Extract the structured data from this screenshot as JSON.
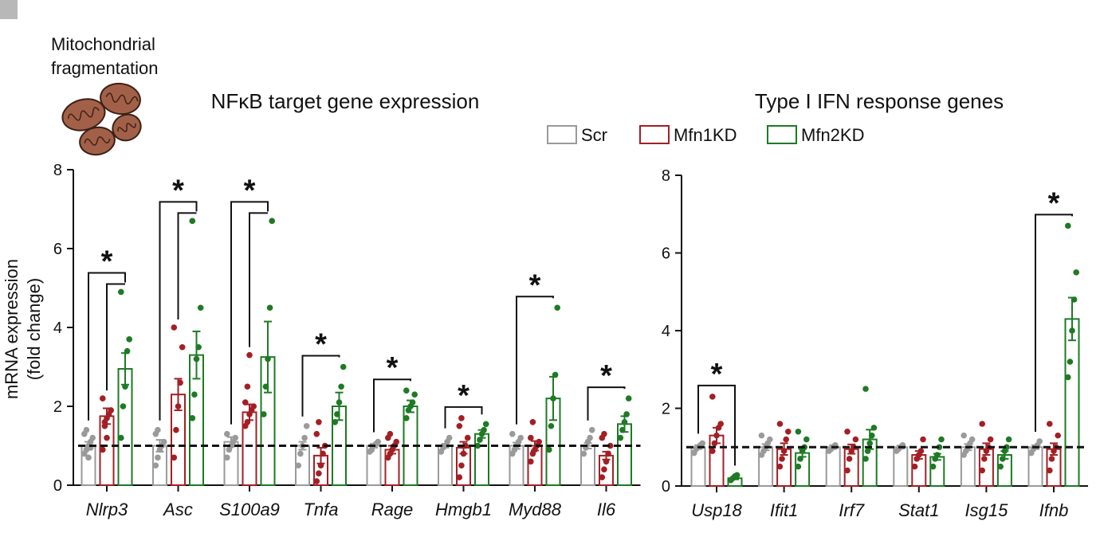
{
  "figure": {
    "mito_label_line1": "Mitochondrial",
    "mito_label_line2": "fragmentation",
    "ylabel_line1": "mRNA expression",
    "ylabel_line2": "(fold change)",
    "colors": {
      "Scr": "#9a9a9a",
      "Mfn1KD": "#a31f24",
      "Mfn2KD": "#1e7a24"
    },
    "legend": [
      {
        "name": "Scr",
        "color": "#9a9a9a"
      },
      {
        "name": "Mfn1KD",
        "color": "#a31f24"
      },
      {
        "name": "Mfn2KD",
        "color": "#1e7a24"
      }
    ],
    "mito_icon": "mitochondria-icon"
  },
  "chart_data": [
    {
      "type": "bar",
      "title": "NFκB target gene expression",
      "ylim": [
        0,
        8
      ],
      "yticks": [
        "0",
        "2",
        "4",
        "6",
        "8"
      ],
      "reference_line": 1,
      "categories": [
        "Nlrp3",
        "Asc",
        "S100a9",
        "Tnfa",
        "Rage",
        "Hmgb1",
        "Myd88",
        "Il6"
      ],
      "series": [
        {
          "name": "Scr",
          "values": [
            1.0,
            1.0,
            1.1,
            1.0,
            1.0,
            1.0,
            1.0,
            1.0
          ],
          "sem": [
            0.1,
            0.15,
            0.12,
            0.1,
            0.05,
            0.05,
            0.08,
            0.07
          ],
          "points": [
            [
              0.8,
              0.9,
              1.0,
              1.1,
              1.2,
              1.3,
              1.4,
              0.7,
              0.95
            ],
            [
              0.5,
              0.7,
              0.9,
              1.0,
              1.1,
              1.3,
              1.4
            ],
            [
              0.7,
              0.9,
              1.0,
              1.1,
              1.2,
              1.3
            ],
            [
              0.5,
              0.8,
              1.0,
              1.2,
              1.5
            ],
            [
              0.85,
              0.9,
              1.0,
              1.05,
              1.1
            ],
            [
              0.85,
              0.95,
              1.0,
              1.1,
              1.2
            ],
            [
              0.8,
              0.9,
              1.0,
              1.1,
              1.2,
              1.3
            ],
            [
              0.8,
              0.95,
              1.1,
              1.2,
              1.4
            ]
          ]
        },
        {
          "name": "Mfn1KD",
          "values": [
            1.75,
            2.3,
            1.85,
            0.75,
            0.9,
            0.95,
            1.0,
            0.75
          ],
          "sem": [
            0.2,
            0.4,
            0.2,
            0.2,
            0.1,
            0.15,
            0.12,
            0.1
          ],
          "points": [
            [
              0.9,
              1.5,
              1.7,
              1.8,
              1.9,
              2.2,
              1.6,
              1.2
            ],
            [
              0.7,
              1.4,
              2.0,
              2.6,
              3.5,
              4.0
            ],
            [
              1.5,
              1.6,
              1.8,
              1.9,
              2.0,
              2.1,
              2.5,
              3.3
            ],
            [
              0.1,
              0.3,
              0.5,
              0.8,
              1.0,
              1.3,
              1.6
            ],
            [
              0.7,
              0.8,
              0.9,
              1.0,
              1.1,
              1.2,
              1.3
            ],
            [
              0.2,
              0.5,
              0.8,
              1.0,
              1.2,
              1.5,
              1.7
            ],
            [
              0.6,
              0.8,
              0.9,
              1.0,
              1.1,
              1.2,
              1.6
            ],
            [
              0.2,
              0.4,
              0.6,
              0.8,
              1.0,
              1.2,
              1.3
            ]
          ]
        },
        {
          "name": "Mfn2KD",
          "values": [
            2.95,
            3.3,
            3.25,
            2.0,
            2.0,
            1.3,
            2.2,
            1.55
          ],
          "sem": [
            0.4,
            0.6,
            0.9,
            0.35,
            0.15,
            0.1,
            0.55,
            0.2
          ],
          "points": [
            [
              1.2,
              2.0,
              2.5,
              3.4,
              3.7,
              4.9
            ],
            [
              1.7,
              2.3,
              3.2,
              3.5,
              4.5,
              6.7
            ],
            [
              1.8,
              2.5,
              3.2,
              4.5,
              6.7
            ],
            [
              1.6,
              1.8,
              2.1,
              2.5,
              3.0
            ],
            [
              1.7,
              1.9,
              2.0,
              2.1,
              2.3,
              2.4
            ],
            [
              1.0,
              1.15,
              1.3,
              1.4,
              1.55
            ],
            [
              0.9,
              1.5,
              2.2,
              2.8,
              4.5
            ],
            [
              1.2,
              1.4,
              1.6,
              1.8,
              2.2
            ]
          ]
        }
      ],
      "significance": [
        {
          "category": "Nlrp3",
          "label": "*",
          "nested": true
        },
        {
          "category": "Asc",
          "label": "*",
          "nested": true
        },
        {
          "category": "S100a9",
          "label": "*",
          "nested": true
        },
        {
          "category": "Tnfa",
          "label": "*",
          "nested": false
        },
        {
          "category": "Rage",
          "label": "*",
          "nested": false
        },
        {
          "category": "Hmgb1",
          "label": "*",
          "nested": false
        },
        {
          "category": "Myd88",
          "label": "*",
          "nested": false
        },
        {
          "category": "Il6",
          "label": "*",
          "nested": false
        }
      ]
    },
    {
      "type": "bar",
      "title": "Type I IFN response genes",
      "ylim": [
        0,
        8
      ],
      "yticks": [
        "0",
        "2",
        "4",
        "6",
        "8"
      ],
      "reference_line": 1,
      "categories": [
        "Usp18",
        "Ifit1",
        "Irf7",
        "Stat1",
        "Isg15",
        "Ifnb"
      ],
      "series": [
        {
          "name": "Scr",
          "values": [
            1.0,
            1.0,
            1.0,
            1.0,
            1.0,
            1.0
          ],
          "sem": [
            0.05,
            0.08,
            0.05,
            0.04,
            0.08,
            0.05
          ],
          "points": [
            [
              0.85,
              0.95,
              1.0,
              1.05,
              1.1
            ],
            [
              0.8,
              0.9,
              1.0,
              1.1,
              1.2,
              1.3
            ],
            [
              0.9,
              0.95,
              1.0,
              1.05
            ],
            [
              0.9,
              0.95,
              1.0,
              1.05
            ],
            [
              0.8,
              0.9,
              1.0,
              1.1,
              1.2,
              1.3
            ],
            [
              0.85,
              0.95,
              1.0,
              1.05,
              1.15
            ]
          ]
        },
        {
          "name": "Mfn1KD",
          "values": [
            1.3,
            0.95,
            0.95,
            0.8,
            0.95,
            0.95
          ],
          "sem": [
            0.2,
            0.15,
            0.12,
            0.1,
            0.15,
            0.15
          ],
          "points": [
            [
              0.9,
              1.1,
              1.3,
              1.5,
              1.6,
              2.3
            ],
            [
              0.5,
              0.7,
              0.9,
              1.2,
              1.4,
              1.6
            ],
            [
              0.4,
              0.7,
              0.9,
              1.0,
              1.2,
              1.4
            ],
            [
              0.5,
              0.7,
              0.8,
              0.9,
              1.2
            ],
            [
              0.4,
              0.7,
              0.9,
              1.0,
              1.2,
              1.6
            ],
            [
              0.4,
              0.7,
              0.9,
              1.0,
              1.3,
              1.6
            ]
          ]
        },
        {
          "name": "Mfn2KD",
          "values": [
            0.2,
            0.85,
            1.2,
            0.75,
            0.8,
            4.3
          ],
          "sem": [
            0.03,
            0.1,
            0.25,
            0.08,
            0.1,
            0.55
          ],
          "points": [
            [
              0.15,
              0.2,
              0.25,
              0.28
            ],
            [
              0.5,
              0.7,
              0.9,
              1.0,
              1.2,
              1.4
            ],
            [
              0.7,
              0.9,
              1.1,
              1.3,
              1.5,
              2.5
            ],
            [
              0.5,
              0.7,
              0.8,
              1.0,
              1.2
            ],
            [
              0.5,
              0.7,
              0.9,
              1.0,
              1.2
            ],
            [
              2.8,
              3.2,
              4.0,
              4.8,
              5.5,
              6.7
            ]
          ]
        }
      ],
      "significance": [
        {
          "category": "Usp18",
          "label": "*",
          "nested": false
        },
        {
          "category": "Ifnb",
          "label": "*",
          "nested": false
        }
      ]
    }
  ]
}
